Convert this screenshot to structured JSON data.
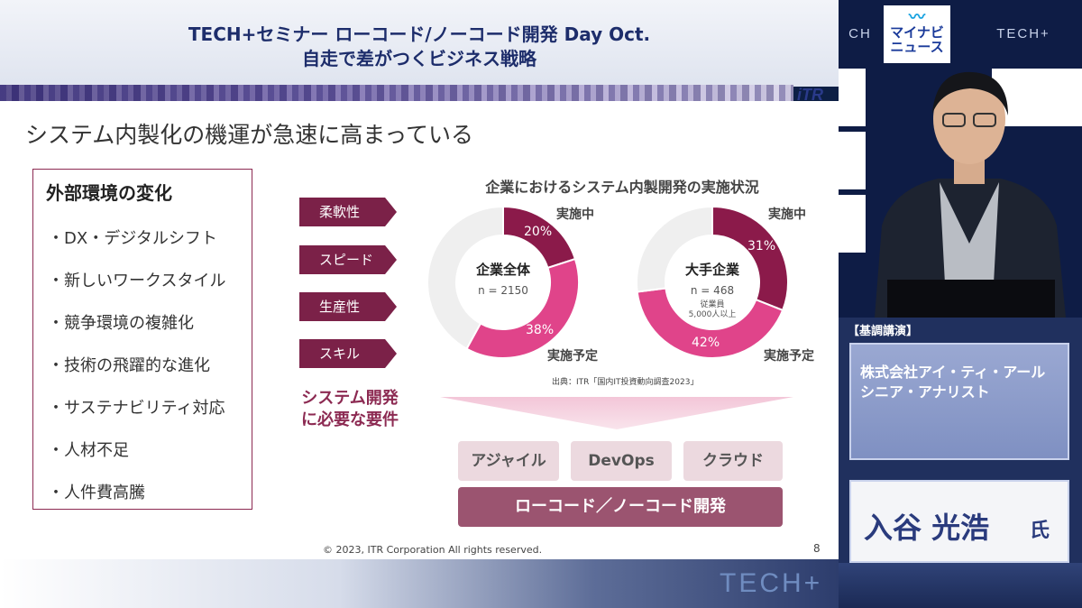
{
  "header": {
    "line1": "TECH+セミナー ローコード/ノーコード開発 Day Oct.",
    "line2": "自走で差がつくビジネス戦略"
  },
  "slide": {
    "logo": "iTR",
    "title": "システム内製化の機運が急速に高まっている",
    "env_box": {
      "title": "外部環境の変化",
      "items": [
        "・DX・デジタルシフト",
        "・新しいワークスタイル",
        "・競争環境の複雑化",
        "・技術の飛躍的な進化",
        "・サステナビリティ対応",
        "・人材不足",
        "・人件費高騰"
      ]
    },
    "requirements": [
      "柔軟性",
      "スピード",
      "生産性",
      "スキル"
    ],
    "requirements_label_line1": "システム開発",
    "requirements_label_line2": "に必要な要件",
    "chart_title": "企業におけるシステム内製開発の実施状況",
    "source": "出典：ITR「国内IT投資動向調査2023」",
    "methods": [
      "アジャイル",
      "DevOps",
      "クラウド"
    ],
    "lowcode": "ローコード／ノーコード開発",
    "copyright": "© 2023, ITR Corporation  All rights reserved.",
    "page_number": "8"
  },
  "chart_data": [
    {
      "type": "pie",
      "title": "企業全体",
      "n_label": "n = 2150",
      "note": "",
      "slices": [
        {
          "label": "実施中",
          "value": 20,
          "value_label": "20%",
          "color": "#8b1a4a"
        },
        {
          "label": "実施予定",
          "value": 38,
          "value_label": "38%",
          "color": "#e0448a"
        },
        {
          "label": "",
          "value": 42,
          "value_label": "",
          "color": "#efefef"
        }
      ]
    },
    {
      "type": "pie",
      "title": "大手企業",
      "n_label": "n = 468",
      "note_line1": "従業員",
      "note_line2": "5,000人以上",
      "slices": [
        {
          "label": "実施中",
          "value": 31,
          "value_label": "31%",
          "color": "#8b1a4a"
        },
        {
          "label": "実施予定",
          "value": 42,
          "value_label": "42%",
          "color": "#e0448a"
        },
        {
          "label": "",
          "value": 27,
          "value_label": "",
          "color": "#efefef"
        }
      ]
    }
  ],
  "overlay": {
    "keynote_label": "【基調講演】",
    "company_line1": "株式会社アイ・ティ・アール",
    "company_line2": "シニア・アナリスト",
    "speaker_name": "入谷 光浩",
    "speaker_suffix": "氏",
    "bottom_logo": "TECH+"
  },
  "backdrop": {
    "logo_line1": "マイナビ",
    "logo_line2": "ニュース",
    "tech_logo": "TECH+"
  }
}
